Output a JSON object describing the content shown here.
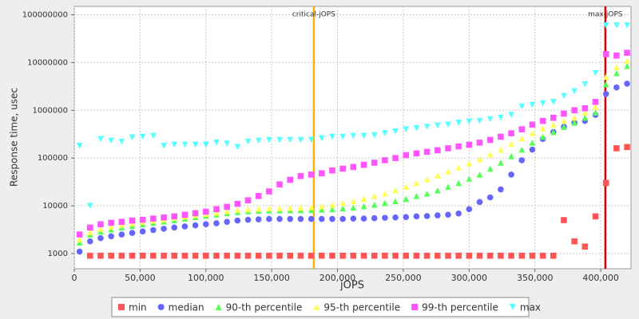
{
  "chart_data": {
    "type": "scatter",
    "x_label": "jOPS",
    "y_label": "Response time, usec",
    "log_y": true,
    "grid": true,
    "xlim": [
      0,
      423000
    ],
    "ylim": [
      480,
      150000000
    ],
    "xticks": [
      {
        "value": 0,
        "label": "0"
      },
      {
        "value": 50000,
        "label": "50,000"
      },
      {
        "value": 100000,
        "label": "100,000"
      },
      {
        "value": 150000,
        "label": "150,000"
      },
      {
        "value": 200000,
        "label": "200,000"
      },
      {
        "value": 250000,
        "label": "250,000"
      },
      {
        "value": 300000,
        "label": "300,000"
      },
      {
        "value": 350000,
        "label": "350,000"
      },
      {
        "value": 400000,
        "label": "400,000"
      }
    ],
    "yticks": [
      1000,
      10000,
      100000,
      1000000,
      10000000,
      100000000
    ],
    "reference_lines": [
      {
        "label": "critical-jOPS",
        "value": 182000,
        "color": "#ffb000"
      },
      {
        "label": "max-jOPS",
        "value": 403500,
        "color": "#dd0000"
      }
    ],
    "x": [
      4000,
      12000,
      20000,
      28000,
      36000,
      44000,
      52000,
      60000,
      68000,
      76000,
      84000,
      92000,
      100000,
      108000,
      116000,
      124000,
      132000,
      140000,
      148000,
      156000,
      164000,
      172000,
      180000,
      188000,
      196000,
      204000,
      212000,
      220000,
      228000,
      236000,
      244000,
      252000,
      260000,
      268000,
      276000,
      284000,
      292000,
      300000,
      308000,
      316000,
      324000,
      332000,
      340000,
      348000,
      356000,
      364000,
      372000,
      380000,
      388000,
      396000,
      404000,
      412000,
      420000
    ],
    "series": [
      {
        "name": "min",
        "color": "#ff5555",
        "marker": "square",
        "values": [
          null,
          900,
          900,
          900,
          900,
          900,
          900,
          900,
          900,
          900,
          900,
          900,
          900,
          900,
          900,
          900,
          900,
          900,
          900,
          900,
          900,
          900,
          900,
          900,
          900,
          900,
          900,
          900,
          900,
          900,
          900,
          900,
          900,
          900,
          900,
          900,
          900,
          900,
          900,
          900,
          900,
          900,
          900,
          900,
          900,
          900,
          5000,
          1800,
          1400,
          6000,
          30000,
          160000,
          170000
        ]
      },
      {
        "name": "median",
        "color": "#6666ff",
        "marker": "circle",
        "values": [
          1100,
          1800,
          2100,
          2300,
          2500,
          2700,
          2900,
          3100,
          3300,
          3500,
          3700,
          3900,
          4100,
          4300,
          4600,
          4900,
          5100,
          5200,
          5300,
          5300,
          5300,
          5300,
          5300,
          5300,
          5300,
          5300,
          5400,
          5400,
          5500,
          5600,
          5700,
          5800,
          6000,
          6100,
          6300,
          6500,
          6900,
          8500,
          12000,
          15000,
          22000,
          45000,
          90000,
          150000,
          250000,
          350000,
          450000,
          550000,
          600000,
          800000,
          2200000,
          3000000,
          3600000
        ]
      },
      {
        "name": "90-th percentile",
        "color": "#55ff55",
        "marker": "triangle-up",
        "values": [
          1700,
          2500,
          2900,
          3200,
          3500,
          3800,
          4100,
          4400,
          4700,
          5000,
          5400,
          5800,
          6200,
          6600,
          7000,
          7400,
          7700,
          7900,
          8000,
          8000,
          8100,
          8100,
          8200,
          8300,
          8500,
          8800,
          9200,
          9800,
          10500,
          11500,
          12500,
          14000,
          16000,
          18000,
          21000,
          25000,
          30000,
          37000,
          45000,
          60000,
          80000,
          110000,
          150000,
          210000,
          280000,
          350000,
          450000,
          550000,
          700000,
          900000,
          3500000,
          6000000,
          8500000
        ]
      },
      {
        "name": "95-th percentile",
        "color": "#ffff55",
        "marker": "triangle-up",
        "values": [
          2000,
          2800,
          3300,
          3700,
          4000,
          4300,
          4600,
          4900,
          5200,
          5600,
          6000,
          6400,
          6800,
          7200,
          7700,
          8200,
          8500,
          8700,
          8800,
          8900,
          9000,
          9100,
          9400,
          9800,
          10500,
          11500,
          12500,
          14000,
          16000,
          18000,
          21000,
          25000,
          30000,
          36000,
          43000,
          52000,
          63000,
          78000,
          95000,
          120000,
          150000,
          200000,
          260000,
          330000,
          420000,
          500000,
          600000,
          700000,
          900000,
          1200000,
          5000000,
          8000000,
          11000000
        ]
      },
      {
        "name": "99-th percentile",
        "color": "#ff55ff",
        "marker": "square",
        "values": [
          2500,
          3500,
          4100,
          4400,
          4600,
          4900,
          5100,
          5400,
          5700,
          6000,
          6500,
          7000,
          7500,
          8500,
          9500,
          11000,
          13000,
          16000,
          20000,
          28000,
          35000,
          42000,
          45000,
          48000,
          55000,
          60000,
          65000,
          72000,
          80000,
          90000,
          100000,
          115000,
          125000,
          135000,
          145000,
          160000,
          175000,
          190000,
          210000,
          240000,
          280000,
          330000,
          400000,
          500000,
          600000,
          700000,
          850000,
          1000000,
          1100000,
          1500000,
          15000000,
          14000000,
          16000000
        ]
      },
      {
        "name": "max",
        "color": "#55ffff",
        "marker": "triangle-down",
        "values": [
          180000,
          10000,
          250000,
          230000,
          220000,
          270000,
          280000,
          290000,
          180000,
          190000,
          190000,
          190000,
          190000,
          210000,
          200000,
          170000,
          220000,
          230000,
          240000,
          240000,
          240000,
          240000,
          240000,
          260000,
          280000,
          280000,
          290000,
          290000,
          300000,
          330000,
          360000,
          400000,
          420000,
          450000,
          480000,
          500000,
          550000,
          580000,
          600000,
          650000,
          700000,
          800000,
          1200000,
          1300000,
          1400000,
          1500000,
          2000000,
          2500000,
          3500000,
          6000000,
          60000000,
          60000000,
          60000000
        ]
      }
    ]
  }
}
